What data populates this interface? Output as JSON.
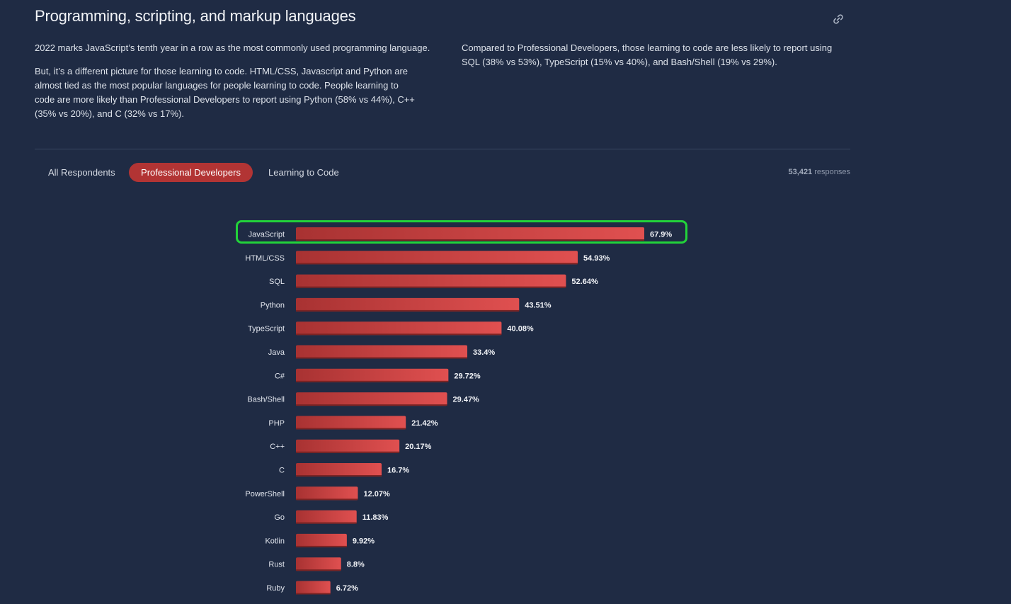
{
  "section": {
    "title": "Programming, scripting, and markup languages",
    "link_icon": "link-icon",
    "paragraphs": {
      "p1": "2022 marks JavaScript’s tenth year in a row as the most commonly used programming language.",
      "p2": "But, it’s a different picture for those learning to code. HTML/CSS, Javascript and Python are almost tied as the most popular languages for people learning to code. People learning to code are more likely than Professional Developers to report using Python (58% vs 44%), C++ (35% vs 20%), and C (32% vs 17%).",
      "p3": "Compared to Professional Developers, those learning to code are less likely to report using SQL (38% vs 53%), TypeScript (15% vs 40%), and Bash/Shell (19% vs 29%)."
    }
  },
  "tabs": {
    "all": "All Respondents",
    "pro": "Professional Developers",
    "learn": "Learning to Code",
    "active": "Professional Developers"
  },
  "responses": {
    "count": "53,421",
    "label": " responses"
  },
  "colors": {
    "background": "#1f2b44",
    "bar_dark": "#a83232",
    "bar_light": "#e05050",
    "active_tab": "#b23434",
    "highlight": "#22d33a"
  },
  "chart_data": {
    "type": "bar",
    "orientation": "horizontal",
    "categories": [
      "JavaScript",
      "HTML/CSS",
      "SQL",
      "Python",
      "TypeScript",
      "Java",
      "C#",
      "Bash/Shell",
      "PHP",
      "C++",
      "C",
      "PowerShell",
      "Go",
      "Kotlin",
      "Rust",
      "Ruby"
    ],
    "values": [
      67.9,
      54.93,
      52.64,
      43.51,
      40.08,
      33.4,
      29.72,
      29.47,
      21.42,
      20.17,
      16.7,
      12.07,
      11.83,
      9.92,
      8.8,
      6.72
    ],
    "value_labels": [
      "67.9%",
      "54.93%",
      "52.64%",
      "43.51%",
      "40.08%",
      "33.4%",
      "29.72%",
      "29.47%",
      "21.42%",
      "20.17%",
      "16.7%",
      "12.07%",
      "11.83%",
      "9.92%",
      "8.8%",
      "6.72%"
    ],
    "unit": "%",
    "highlighted_category": "JavaScript",
    "title": "",
    "xlabel": "",
    "ylabel": "",
    "xlim": [
      0,
      67.9
    ],
    "grid": false
  }
}
